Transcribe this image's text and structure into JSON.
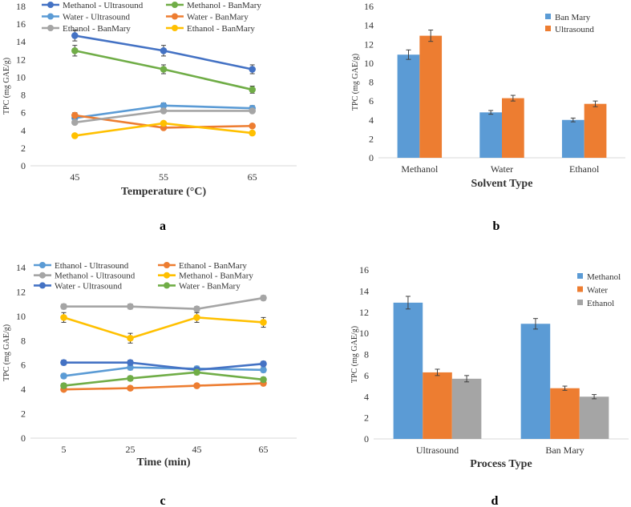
{
  "chart_data": [
    {
      "panel": "a",
      "type": "line",
      "title": "",
      "xlabel": "Temperature (°C)",
      "ylabel": "TPC (mg GAE/g)",
      "categories": [
        "45",
        "55",
        "65"
      ],
      "ylim": [
        0,
        18
      ],
      "yticks": [
        0,
        2,
        4,
        6,
        8,
        10,
        12,
        14,
        16,
        18
      ],
      "legend_columns": 2,
      "series": [
        {
          "name": "Methanol - Ultrasound",
          "color": "#4472c4",
          "values": [
            14.7,
            13.0,
            10.9
          ],
          "errors": [
            0.6,
            0.6,
            0.5
          ]
        },
        {
          "name": "Methanol - BanMary",
          "color": "#70ad47",
          "values": [
            13.0,
            10.9,
            8.6
          ],
          "errors": [
            0.6,
            0.5,
            0.4
          ]
        },
        {
          "name": "Water - Ultrasound",
          "color": "#5b9bd5",
          "values": [
            5.4,
            6.8,
            6.5
          ],
          "errors": [
            0.3,
            0.3,
            0.3
          ]
        },
        {
          "name": "Water - BanMary",
          "color": "#ed7d31",
          "values": [
            5.7,
            4.3,
            4.5
          ],
          "errors": [
            0.3,
            0.2,
            0.2
          ]
        },
        {
          "name": "Ethanol - BanMary",
          "color": "#a5a5a5",
          "values": [
            4.9,
            6.2,
            6.2
          ],
          "errors": [
            0.2,
            0.2,
            0.2
          ]
        },
        {
          "name": "Ethanol - BanMary",
          "color": "#ffc000",
          "values": [
            3.4,
            4.8,
            3.7
          ],
          "errors": [
            0.2,
            0.2,
            0.2
          ]
        }
      ]
    },
    {
      "panel": "b",
      "type": "bar",
      "title": "",
      "xlabel": "Solvent Type",
      "ylabel": "TPC (mg GAE/g)",
      "categories": [
        "Methanol",
        "Water",
        "Ethanol"
      ],
      "ylim": [
        0,
        16
      ],
      "yticks": [
        0,
        2,
        4,
        6,
        8,
        10,
        12,
        14,
        16
      ],
      "legend_columns": 1,
      "series": [
        {
          "name": "Ban Mary",
          "color": "#5b9bd5",
          "values": [
            10.9,
            4.8,
            4.0
          ],
          "errors": [
            0.5,
            0.2,
            0.2
          ]
        },
        {
          "name": "Ultrasound",
          "color": "#ed7d31",
          "values": [
            12.9,
            6.3,
            5.7
          ],
          "errors": [
            0.6,
            0.3,
            0.3
          ]
        }
      ]
    },
    {
      "panel": "c",
      "type": "line",
      "title": "",
      "xlabel": "Time (min)",
      "ylabel": "TPC (mg GAE/g)",
      "categories": [
        "5",
        "25",
        "45",
        "65"
      ],
      "ylim": [
        0,
        14
      ],
      "yticks": [
        0,
        2,
        4,
        6,
        8,
        10,
        12,
        14
      ],
      "legend_columns": 2,
      "series": [
        {
          "name": "Ethanol - Ultrasound",
          "color": "#5b9bd5",
          "values": [
            5.1,
            5.8,
            5.7,
            5.6
          ],
          "errors": [
            0.2,
            0.2,
            0.2,
            0.2
          ]
        },
        {
          "name": "Ethanol - BanMary",
          "color": "#ed7d31",
          "values": [
            4.0,
            4.1,
            4.3,
            4.5
          ],
          "errors": [
            0.15,
            0.15,
            0.15,
            0.15
          ]
        },
        {
          "name": "Methanol - Ultrasound",
          "color": "#a5a5a5",
          "values": [
            10.8,
            10.8,
            10.6,
            11.5
          ],
          "errors": [
            0.2,
            0.2,
            0.2,
            0.2
          ]
        },
        {
          "name": "Methanol - BanMary",
          "color": "#ffc000",
          "values": [
            9.9,
            8.2,
            9.9,
            9.5
          ],
          "errors": [
            0.4,
            0.4,
            0.4,
            0.4
          ]
        },
        {
          "name": "Water - Ultrasound",
          "color": "#4472c4",
          "values": [
            6.2,
            6.2,
            5.6,
            6.1
          ],
          "errors": [
            0.2,
            0.2,
            0.2,
            0.2
          ]
        },
        {
          "name": "Water - BanMary",
          "color": "#70ad47",
          "values": [
            4.3,
            4.9,
            5.4,
            4.8
          ],
          "errors": [
            0.2,
            0.2,
            0.2,
            0.2
          ]
        }
      ]
    },
    {
      "panel": "d",
      "type": "bar",
      "title": "",
      "xlabel": "Process Type",
      "ylabel": "TPC (mg GAE/g)",
      "categories": [
        "Ultrasound",
        "Ban Mary"
      ],
      "ylim": [
        0,
        16
      ],
      "yticks": [
        0,
        2,
        4,
        6,
        8,
        10,
        12,
        14,
        16
      ],
      "legend_columns": 1,
      "series": [
        {
          "name": "Methanol",
          "color": "#5b9bd5",
          "values": [
            12.9,
            10.9
          ],
          "errors": [
            0.6,
            0.5
          ]
        },
        {
          "name": "Water",
          "color": "#ed7d31",
          "values": [
            6.3,
            4.8
          ],
          "errors": [
            0.3,
            0.2
          ]
        },
        {
          "name": "Ethanol",
          "color": "#a5a5a5",
          "values": [
            5.7,
            4.0
          ],
          "errors": [
            0.3,
            0.2
          ]
        }
      ]
    }
  ]
}
